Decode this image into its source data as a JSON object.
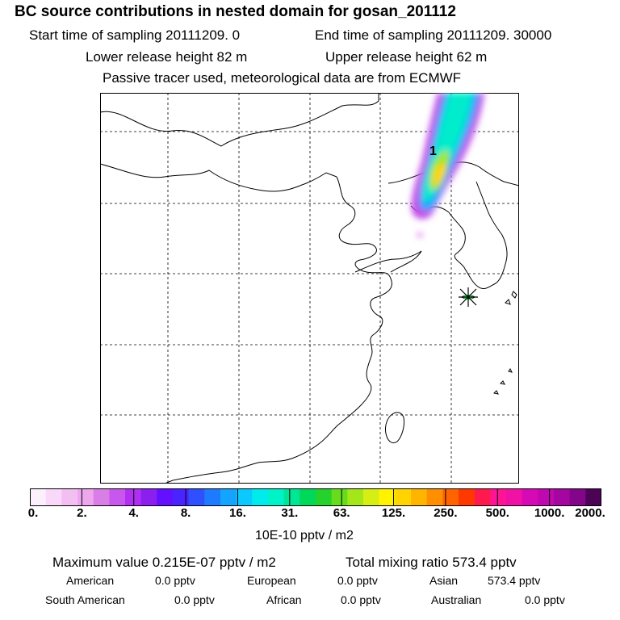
{
  "header": {
    "title": "BC  source contributions in nested domain for gosan_201112",
    "start": "Start time of sampling 20111209.     0",
    "end": "End time of sampling 20111209. 30000",
    "lower": "Lower release height   82 m",
    "upper": "Upper release height   62 m",
    "tracer": "Passive tracer used, meteorological data are from ECMWF"
  },
  "map": {
    "plume_label": "1",
    "receptor": "gosan"
  },
  "colorbar": {
    "colors": [
      "#fdf0fd",
      "#f9d8f9",
      "#f3bff3",
      "#eea6ee",
      "#d97ee6",
      "#c857ee",
      "#b12ff1",
      "#8a1ff0",
      "#6210ff",
      "#4a24ff",
      "#2f50ff",
      "#1e7aff",
      "#12a4ff",
      "#0bc8ff",
      "#00ecec",
      "#00f2c8",
      "#00e696",
      "#00d85a",
      "#27d12c",
      "#66dc1d",
      "#a4e61a",
      "#d5ef14",
      "#fff300",
      "#ffd400",
      "#ffb400",
      "#ff8f00",
      "#ff6400",
      "#ff3800",
      "#ff1a4e",
      "#ff1493",
      "#f012a5",
      "#d60ab4",
      "#bf08b0",
      "#a4069f",
      "#83068a",
      "#4c0356"
    ],
    "ticks": [
      "0.",
      "2.",
      "4.",
      "8.",
      "16.",
      "31.",
      "63.",
      "125.",
      "250.",
      "500.",
      "1000.",
      "2000."
    ],
    "unit": "10E-10 pptv / m2"
  },
  "summary": {
    "max_value": "Maximum value  0.215E-07 pptv / m2",
    "total": "Total mixing ratio     573.4  pptv",
    "regions": [
      {
        "label": "American",
        "value": "0.0 pptv"
      },
      {
        "label": "European",
        "value": "0.0 pptv"
      },
      {
        "label": "Asian",
        "value": "573.4 pptv"
      },
      {
        "label": "South American",
        "value": "0.0 pptv"
      },
      {
        "label": "African",
        "value": "0.0 pptv"
      },
      {
        "label": "Australian",
        "value": "0.0 pptv"
      }
    ]
  }
}
